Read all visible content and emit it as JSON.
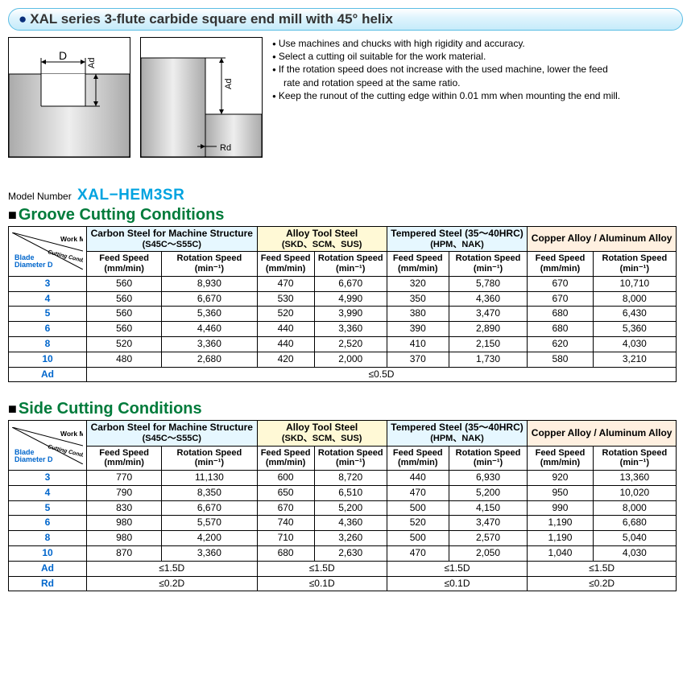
{
  "title": "XAL series 3-flute carbide square end mill with 45° helix",
  "notes": {
    "n1": "Use machines and chucks with high rigidity and accuracy.",
    "n2": "Select a cutting oil suitable for the work material.",
    "n3": "If the rotation speed does not increase with the used machine, lower the feed",
    "n3b": "rate and rotation speed at the same ratio.",
    "n4": "Keep the runout of the cutting edge within 0.01 mm when mounting the end mill."
  },
  "diagram": {
    "D": "D",
    "Ad": "Ad",
    "Rd": "Rd"
  },
  "model": {
    "label": "Model Number",
    "number": "XAL−HEM3SR"
  },
  "headers": {
    "work_material": "Work Material",
    "cutting_cond": "Cutting Conditions",
    "blade_diam": "Blade\nDiameter D",
    "feed": "Feed Speed",
    "feed_u": "(mm/min)",
    "rot": "Rotation Speed",
    "rot_u": "(min⁻¹)",
    "mat1": "Carbon Steel for Machine Structure",
    "mat1s": "(S45C〜S55C)",
    "mat2": "Alloy Tool Steel",
    "mat2s": "(SKD、SCM、SUS)",
    "mat3": "Tempered Steel (35〜40HRC)",
    "mat3s": "(HPM、NAK)",
    "mat4": "Copper Alloy / Aluminum Alloy",
    "Ad": "Ad",
    "Rd": "Rd"
  },
  "groove": {
    "title": "Groove Cutting Conditions",
    "rows": [
      {
        "d": "3",
        "f1": "560",
        "r1": "8,930",
        "f2": "470",
        "r2": "6,670",
        "f3": "320",
        "r3": "5,780",
        "f4": "670",
        "r4": "10,710"
      },
      {
        "d": "4",
        "f1": "560",
        "r1": "6,670",
        "f2": "530",
        "r2": "4,990",
        "f3": "350",
        "r3": "4,360",
        "f4": "670",
        "r4": "8,000"
      },
      {
        "d": "5",
        "f1": "560",
        "r1": "5,360",
        "f2": "520",
        "r2": "3,990",
        "f3": "380",
        "r3": "3,470",
        "f4": "680",
        "r4": "6,430"
      },
      {
        "d": "6",
        "f1": "560",
        "r1": "4,460",
        "f2": "440",
        "r2": "3,360",
        "f3": "390",
        "r3": "2,890",
        "f4": "680",
        "r4": "5,360"
      },
      {
        "d": "8",
        "f1": "520",
        "r1": "3,360",
        "f2": "440",
        "r2": "2,520",
        "f3": "410",
        "r3": "2,150",
        "f4": "620",
        "r4": "4,030"
      },
      {
        "d": "10",
        "f1": "480",
        "r1": "2,680",
        "f2": "420",
        "r2": "2,000",
        "f3": "370",
        "r3": "1,730",
        "f4": "580",
        "r4": "3,210"
      }
    ],
    "ad": "≤0.5D"
  },
  "side": {
    "title": "Side Cutting Conditions",
    "rows": [
      {
        "d": "3",
        "f1": "770",
        "r1": "11,130",
        "f2": "600",
        "r2": "8,720",
        "f3": "440",
        "r3": "6,930",
        "f4": "920",
        "r4": "13,360"
      },
      {
        "d": "4",
        "f1": "790",
        "r1": "8,350",
        "f2": "650",
        "r2": "6,510",
        "f3": "470",
        "r3": "5,200",
        "f4": "950",
        "r4": "10,020"
      },
      {
        "d": "5",
        "f1": "830",
        "r1": "6,670",
        "f2": "670",
        "r2": "5,200",
        "f3": "500",
        "r3": "4,150",
        "f4": "990",
        "r4": "8,000"
      },
      {
        "d": "6",
        "f1": "980",
        "r1": "5,570",
        "f2": "740",
        "r2": "4,360",
        "f3": "520",
        "r3": "3,470",
        "f4": "1,190",
        "r4": "6,680"
      },
      {
        "d": "8",
        "f1": "980",
        "r1": "4,200",
        "f2": "710",
        "r2": "3,260",
        "f3": "500",
        "r3": "2,570",
        "f4": "1,190",
        "r4": "5,040"
      },
      {
        "d": "10",
        "f1": "870",
        "r1": "3,360",
        "f2": "680",
        "r2": "2,630",
        "f3": "470",
        "r3": "2,050",
        "f4": "1,040",
        "r4": "4,030"
      }
    ],
    "ad": {
      "m1": "≤1.5D",
      "m2": "≤1.5D",
      "m3": "≤1.5D",
      "m4": "≤1.5D"
    },
    "rd": {
      "m1": "≤0.2D",
      "m2": "≤0.1D",
      "m3": "≤0.1D",
      "m4": "≤0.2D"
    }
  }
}
